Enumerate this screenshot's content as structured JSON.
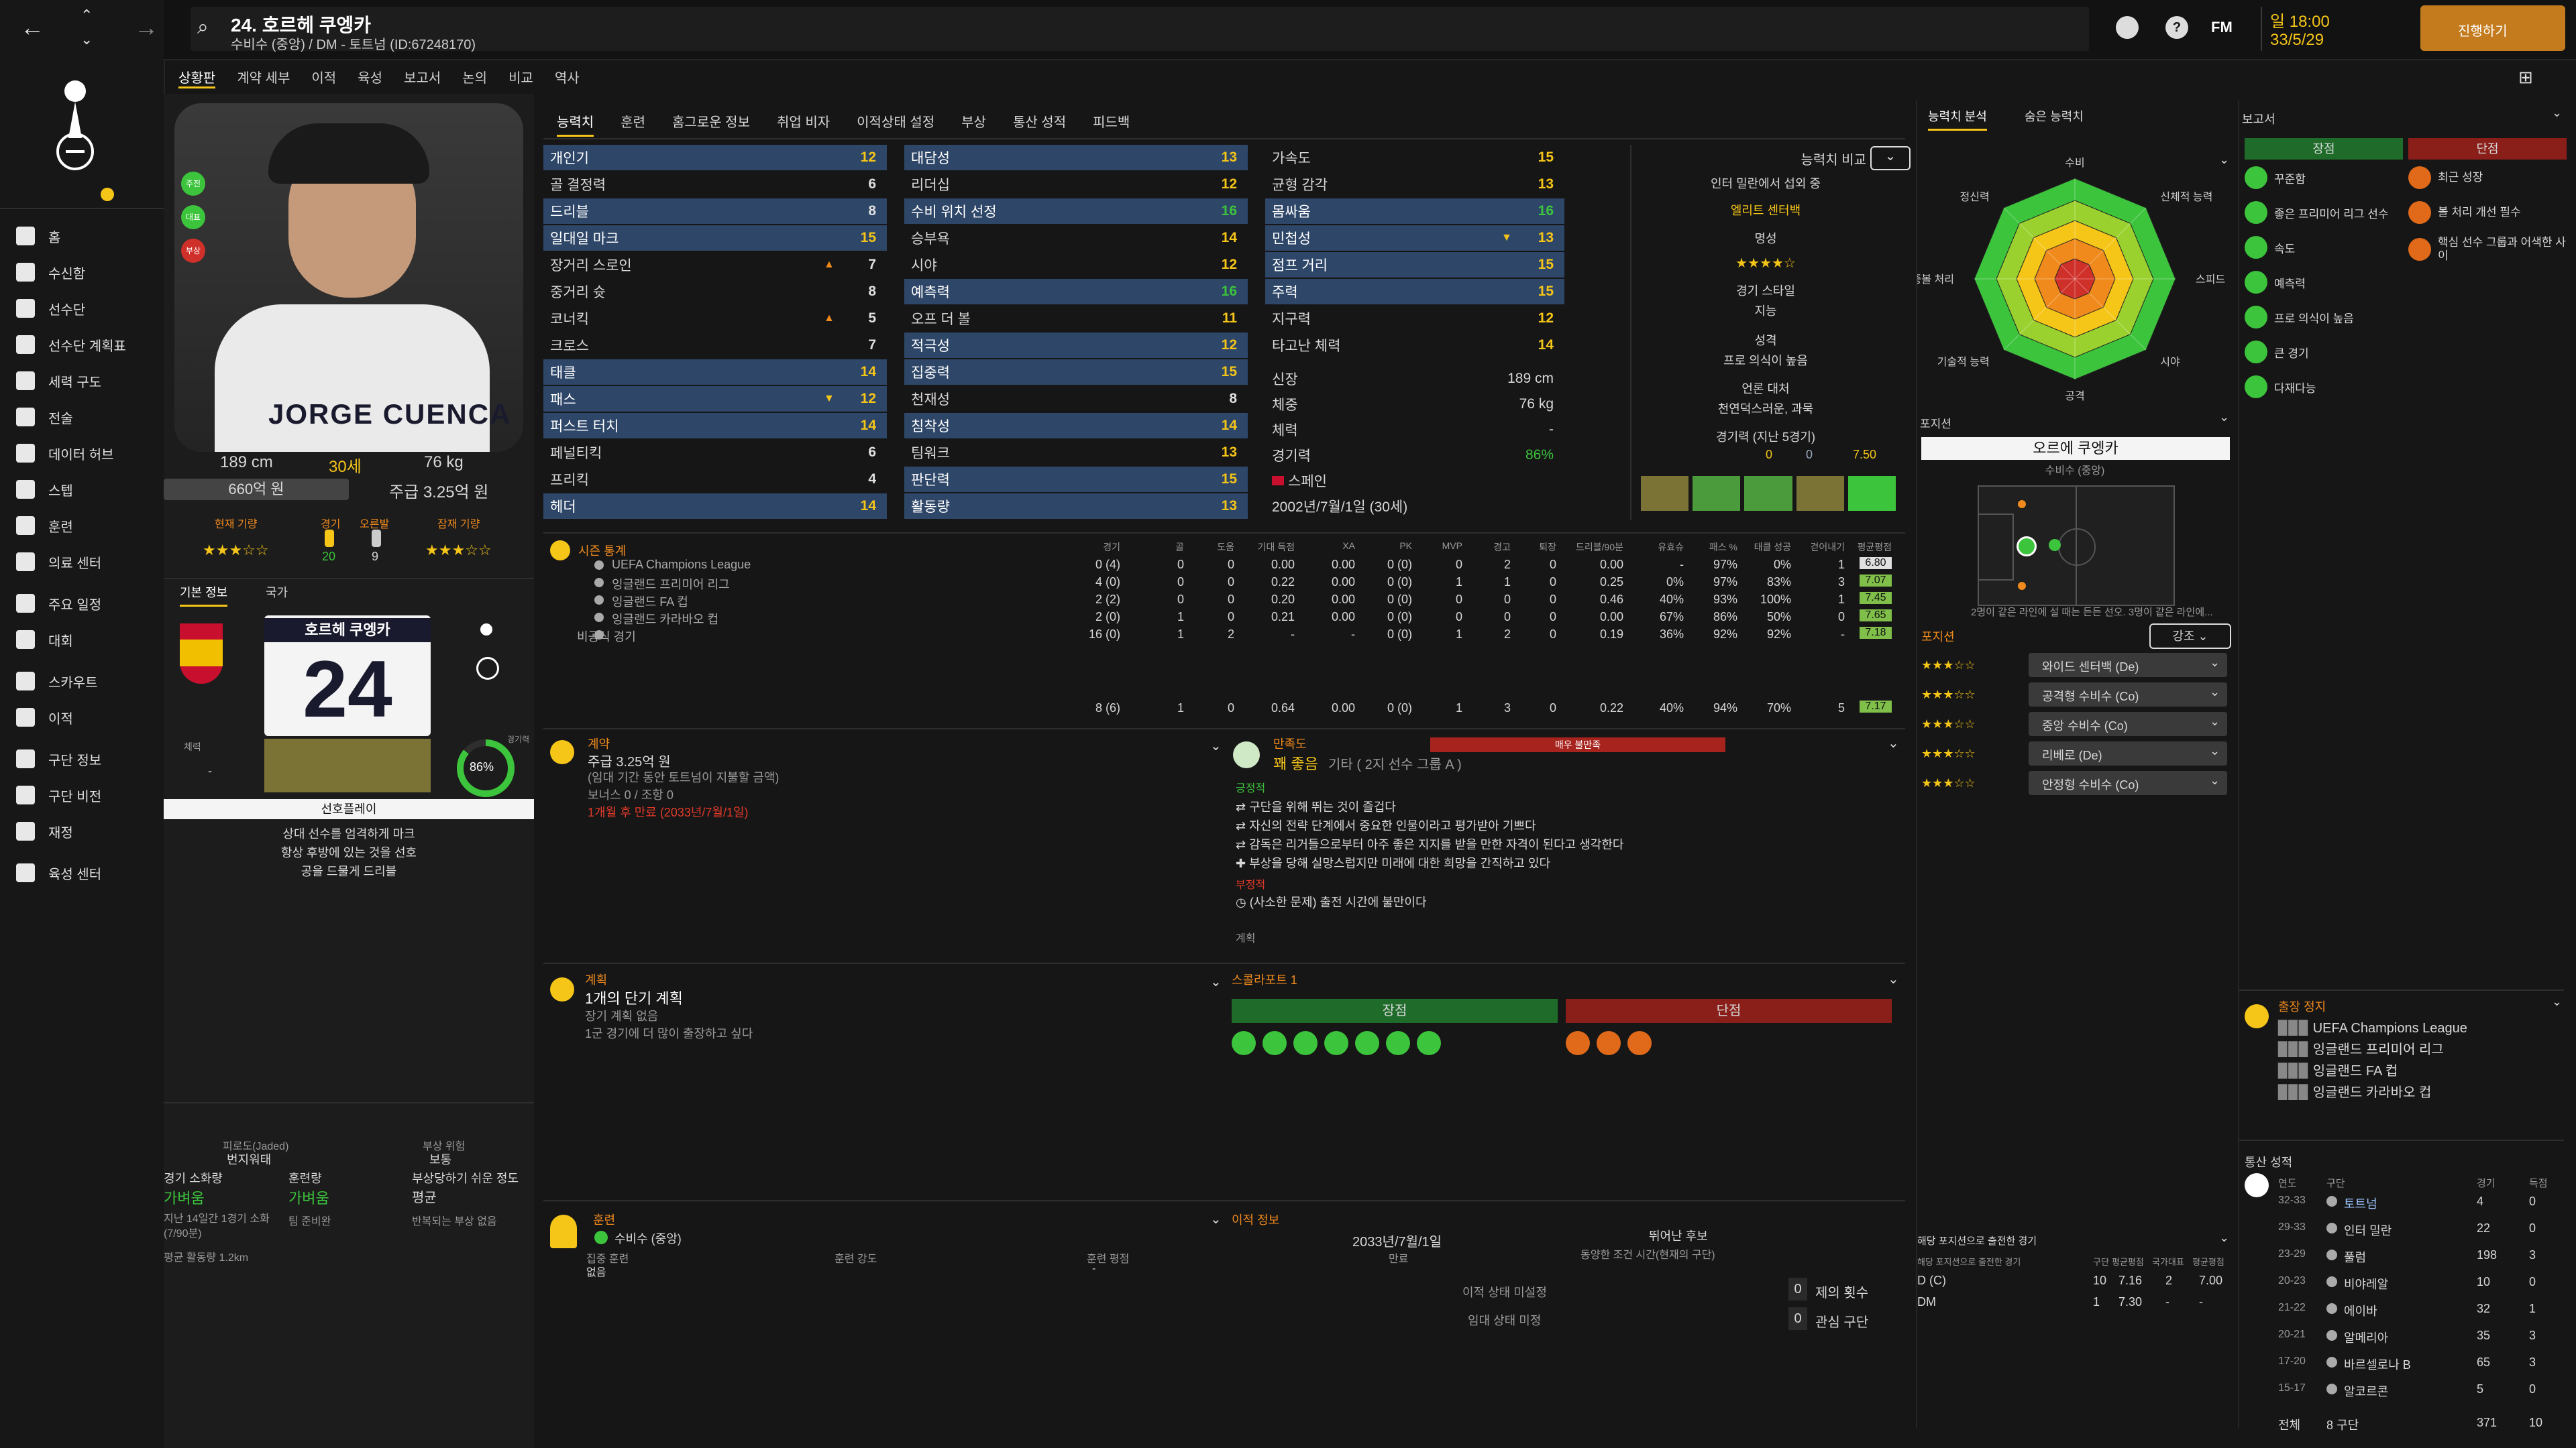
{
  "player": {
    "title": "24. 호르헤 쿠엥카",
    "subtitle": "수비수 (중앙) / DM - 토트넘 (ID:67248170)",
    "shirt_name": "JORGE CUENCA",
    "shirt_name_kr": "호르헤 쿠엥카",
    "number": "24",
    "height": "189 cm",
    "age": "30세",
    "weight": "76 kg",
    "value": "660억 원",
    "wage": "주급 3.25억 원",
    "current_ability_label": "현재 기량",
    "potential_label": "잠재 기량",
    "apps_label": "경기",
    "apps_value": "20",
    "recent_label": "오른발",
    "recent_value": "9",
    "basic_tab": "기본 정보",
    "nation_tab": "국가",
    "fitness_pct": "86%",
    "fitness_label": "경기력",
    "preferred_label": "선호플레이",
    "traits": [
      "상대 선수를 엄격하게 마크",
      "항상 후방에 있는 것을 선호",
      "공을 드물게 드리블"
    ],
    "pos_label": "체력",
    "pos_dash": "-",
    "badge1": "주전",
    "badge2": "대표",
    "badge3": "부상"
  },
  "datebox": {
    "day": "일 18:00",
    "date": "33/5/29",
    "continue": "진행하기"
  },
  "top_icons": [
    "FM"
  ],
  "menu": [
    "상황판",
    "계약 세부",
    "이적",
    "육성",
    "보고서",
    "논의",
    "비교",
    "역사"
  ],
  "sidebar": [
    {
      "label": "홈"
    },
    {
      "label": "수신함"
    },
    {
      "label": "선수단"
    },
    {
      "label": "선수단 계획표"
    },
    {
      "label": "세력 구도"
    },
    {
      "label": "전술"
    },
    {
      "label": "데이터 허브"
    },
    {
      "label": "스텝"
    },
    {
      "label": "훈련"
    },
    {
      "label": "의료 센터"
    },
    {
      "label": "주요 일정"
    },
    {
      "label": "대회"
    },
    {
      "label": "스카우트"
    },
    {
      "label": "이적"
    },
    {
      "label": "구단 정보"
    },
    {
      "label": "구단 비전"
    },
    {
      "label": "재정"
    },
    {
      "label": "육성 센터"
    }
  ],
  "tabs": [
    "능력치",
    "훈련",
    "홈그로운 정보",
    "취업 비자",
    "이적상태 설정",
    "부상",
    "통산 성적",
    "피드백"
  ],
  "attributes": {
    "technical": [
      {
        "name": "개인기",
        "value": "12",
        "hl": true
      },
      {
        "name": "골 결정력",
        "value": "6"
      },
      {
        "name": "드리블",
        "value": "8",
        "hl": true
      },
      {
        "name": "일대일 마크",
        "value": "15",
        "hl": true
      },
      {
        "name": "장거리 스로인",
        "value": "7",
        "up": true
      },
      {
        "name": "중거리 슛",
        "value": "8"
      },
      {
        "name": "코너킥",
        "value": "5",
        "up": true
      },
      {
        "name": "크로스",
        "value": "7"
      },
      {
        "name": "태클",
        "value": "14",
        "hl": true
      },
      {
        "name": "패스",
        "value": "12",
        "hl": true,
        "down": true
      },
      {
        "name": "퍼스트 터치",
        "value": "14",
        "hl": true
      },
      {
        "name": "페널티킥",
        "value": "6"
      },
      {
        "name": "프리킥",
        "value": "4"
      },
      {
        "name": "헤더",
        "value": "14",
        "hl": true
      }
    ],
    "mental": [
      {
        "name": "대담성",
        "value": "13",
        "hl": true
      },
      {
        "name": "리더십",
        "value": "12"
      },
      {
        "name": "수비 위치 선정",
        "value": "16",
        "hl": true
      },
      {
        "name": "승부욕",
        "value": "14"
      },
      {
        "name": "시야",
        "value": "12"
      },
      {
        "name": "예측력",
        "value": "16",
        "hl": true
      },
      {
        "name": "오프 더 볼",
        "value": "11"
      },
      {
        "name": "적극성",
        "value": "12",
        "hl": true
      },
      {
        "name": "집중력",
        "value": "15",
        "hl": true
      },
      {
        "name": "천재성",
        "value": "8"
      },
      {
        "name": "침착성",
        "value": "14",
        "hl": true
      },
      {
        "name": "팀워크",
        "value": "13"
      },
      {
        "name": "판단력",
        "value": "15",
        "hl": true
      },
      {
        "name": "활동량",
        "value": "13",
        "hl": true
      }
    ],
    "physical": [
      {
        "name": "가속도",
        "value": "15"
      },
      {
        "name": "균형 감각",
        "value": "13"
      },
      {
        "name": "몸싸움",
        "value": "16",
        "hl": true
      },
      {
        "name": "민첩성",
        "value": "13",
        "hl": true,
        "down": true
      },
      {
        "name": "점프 거리",
        "value": "15",
        "hl": true
      },
      {
        "name": "주력",
        "value": "15",
        "hl": true
      },
      {
        "name": "지구력",
        "value": "12"
      },
      {
        "name": "타고난 체력",
        "value": "14"
      }
    ],
    "info": [
      {
        "label": "신장",
        "value": "189 cm"
      },
      {
        "label": "체중",
        "value": "76 kg"
      },
      {
        "label": "체력",
        "value": "-"
      },
      {
        "label": "경기력",
        "value": "86%"
      }
    ],
    "nation": "스페인",
    "birth": "2002년/7월/1일 (30세)"
  },
  "compare": {
    "title": "능력치 비교",
    "role_desc": "인터 밀란에서 섭외 중",
    "role": "엘리트 센터백",
    "fame_label": "명성",
    "style_label": "경기 스타일",
    "style_value": "지능",
    "personality_label": "성격",
    "personality_value": "프로 의식이 높음",
    "media_label": "언론 대처",
    "media_value": "천연덕스러운, 과묵",
    "form_label": "경기력 (지난 5경기)",
    "form_goals": "0",
    "form_assists": "0",
    "form_rating": "7.50"
  },
  "season": {
    "title": "시즌 통계",
    "columns": [
      "경기",
      "골",
      "도움",
      "기대 득점",
      "XA",
      "PK",
      "MVP",
      "경고",
      "퇴장",
      "드리블/90분",
      "유효슈",
      "패스 %",
      "태클 성공",
      "걷어내기",
      "평균평점"
    ],
    "rows": [
      {
        "comp": "UEFA Champions League",
        "vals": [
          "0 (4)",
          "0",
          "0",
          "0.00",
          "0.00",
          "0 (0)",
          "0",
          "2",
          "0",
          "0.00",
          "-",
          "97%",
          "0%",
          "1"
        ],
        "rating": "6.80"
      },
      {
        "comp": "잉글랜드 프리미어 리그",
        "vals": [
          "4 (0)",
          "0",
          "0",
          "0.22",
          "0.00",
          "0 (0)",
          "1",
          "1",
          "0",
          "0.25",
          "0%",
          "97%",
          "83%",
          "3"
        ],
        "rating": "7.07"
      },
      {
        "comp": "잉글랜드 FA 컵",
        "vals": [
          "2 (2)",
          "0",
          "0",
          "0.20",
          "0.00",
          "0 (0)",
          "0",
          "0",
          "0",
          "0.46",
          "40%",
          "93%",
          "100%",
          "1"
        ],
        "rating": "7.45"
      },
      {
        "comp": "잉글랜드 카라바오 컵",
        "vals": [
          "2 (0)",
          "1",
          "0",
          "0.21",
          "0.00",
          "0 (0)",
          "0",
          "0",
          "0",
          "0.00",
          "67%",
          "86%",
          "50%",
          "0"
        ],
        "rating": "7.65"
      },
      {
        "comp": "비공식 경기",
        "vals": [
          "16 (0)",
          "1",
          "2",
          "-",
          "-",
          "0 (0)",
          "1",
          "2",
          "0",
          "0.19",
          "36%",
          "92%",
          "92%",
          "-"
        ],
        "rating": "7.18"
      }
    ],
    "total": {
      "vals": [
        "8 (6)",
        "1",
        "0",
        "0.64",
        "0.00",
        "0 (0)",
        "1",
        "3",
        "0",
        "0.22",
        "40%",
        "94%",
        "70%",
        "5"
      ],
      "rating": "7.17"
    }
  },
  "contract": {
    "title": "계약",
    "wage": "주급 3.25억 원",
    "note": "(임대 기간 동안 토트넘이 지불할 금액)",
    "bonus": "보너스 0 / 조항 0",
    "expiry": "1개월 후 만료 (2033년/7월/1일)"
  },
  "happiness": {
    "title": "만족도",
    "level": "꽤 좋음",
    "group": "기타 ( 2지 선수 그룹 A )",
    "bar_label": "매우 불만족",
    "positive_label": "긍정적",
    "positive": [
      "구단을 위해 뛰는 것이 즐겁다",
      "자신의 전략 단계에서 중요한 인물이라고 평가받아 기쁘다",
      "감독은 리거들으로부터 아주 좋은 지지를 받을 만한 자격이 된다고 생각한다",
      "부상을 당해 실망스럽지만 미래에 대한 희망을 간직하고 있다"
    ],
    "negative_label": "부정적",
    "negative": [
      "(사소한 문제) 출전 시간에 불만이다"
    ],
    "plan_label": "계획"
  },
  "plan": {
    "title": "계획",
    "heading": "1개의 단기 계획",
    "long": "장기 계획 없음",
    "short": "1군 경기에 더 많이 출장하고 싶다"
  },
  "scout": {
    "title": "스콜라포트 1",
    "strengths_label": "장점",
    "weaknesses_label": "단점"
  },
  "training": {
    "title": "훈련",
    "pos": "수비수 (중앙)",
    "focus_label": "집중 훈련",
    "focus_value": "없음",
    "intensity_label": "훈련 강도",
    "rating_label": "훈련 평점",
    "rating_value": "-"
  },
  "transfer": {
    "title": "이적 정보",
    "date": "2033년/7월/1일",
    "date_label": "만료",
    "status_label": "뛰어난 후보",
    "status_note": "동양한 조건 시간(현재의 구단)",
    "list_label": "이적 상태 미설정",
    "loan_label": "임대 상태 미정",
    "offers_label": "제의 횟수",
    "offers_value": "0",
    "interest_label": "관심 구단",
    "interest_value": "0"
  },
  "fitness": {
    "label_a": "피로도(Jaded)",
    "value_a": "번지워태",
    "label_b": "부상 위험",
    "value_b": "보통",
    "cond_label": "경기 소화량",
    "cond_value": "가벼움",
    "train_label": "훈련량",
    "train_value": "가벼움",
    "injury_label": "부상당하기 쉬운 정도",
    "injury_value": "평균",
    "last_match": "지난 14일간 1경기 소화(7/90분)",
    "rest": "팀 준비완",
    "injury_note": "반복되는 부상 없음",
    "distance": "평균 활동량 1.2km"
  },
  "radar": {
    "tab_a": "능력치 분석",
    "tab_b": "숨은 능력치",
    "labels": [
      "수비",
      "신체적 능력",
      "스피드",
      "시야",
      "공격",
      "기술적 능력",
      "공중볼 처리",
      "정신력"
    ]
  },
  "position": {
    "title": "포지션",
    "name": "오르에 쿠엥카",
    "sub": "수비수 (중앙)",
    "note": "2명이 같은 라인에 설 때는 든든 선오. 3명이 같은 라인에...",
    "role_label": "포지션",
    "role_btn": "강조",
    "roles": [
      "와이드 센터백 (De)",
      "공격형 수비수 (Co)",
      "중앙 수비수 (Co)",
      "리베로 (De)",
      "안정형 수비수 (Co)"
    ],
    "roles_pos_title": "해당 포지션으로 출전한 경기",
    "roles_cols": [
      "구단",
      "평균평점",
      "국가대표",
      "평균평점"
    ],
    "pos_rows": [
      {
        "pos": "D (C)",
        "a": "10",
        "b": "7.16",
        "c": "2",
        "d": "7.00"
      },
      {
        "pos": "DM",
        "a": "1",
        "b": "7.30",
        "c": "-",
        "d": "-"
      }
    ]
  },
  "report": {
    "title": "보고서",
    "strengths_label": "장점",
    "weaknesses_label": "단점",
    "strengths": [
      "꾸준함",
      "좋은 프리미어 리그 선수",
      "속도",
      "예측력",
      "프로 의식이 높음",
      "큰 경기",
      "다재다능"
    ],
    "weaknesses": [
      "최근 성장",
      "볼 처리 개선 필수",
      "핵심 선수 그룹과 어색한 사이"
    ]
  },
  "suspension": {
    "title": "출장 정지",
    "items": [
      "UEFA Champions League",
      "잉글랜드 프리미어 리그",
      "잉글랜드 FA 컵",
      "잉글랜드 카라바오 컵"
    ]
  },
  "career": {
    "title": "통산 성적",
    "cols": [
      "연도",
      "구단",
      "경기",
      "득점"
    ],
    "rows": [
      {
        "year": "32-33",
        "club": "토트넘",
        "apps": "4",
        "goals": "0"
      },
      {
        "year": "29-33",
        "club": "인터 밀란",
        "apps": "22",
        "goals": "0"
      },
      {
        "year": "23-29",
        "club": "풀럼",
        "apps": "198",
        "goals": "3"
      },
      {
        "year": "20-23",
        "club": "비야레알",
        "apps": "10",
        "goals": "0"
      },
      {
        "year": "21-22",
        "club": "에이바",
        "apps": "32",
        "goals": "1"
      },
      {
        "year": "20-21",
        "club": "알메리아",
        "apps": "35",
        "goals": "3"
      },
      {
        "year": "17-20",
        "club": "바르셀로나 B",
        "apps": "65",
        "goals": "3"
      },
      {
        "year": "15-17",
        "club": "알코르콘",
        "apps": "5",
        "goals": "0"
      }
    ],
    "total_label": "전체",
    "total_clubs": "8 구단",
    "total_apps": "371",
    "total_goals": "10"
  },
  "colors": {
    "accent": "#f5c518",
    "green": "#3cc43c",
    "red": "#a7231e",
    "highlight": "#2e4668",
    "button": "#c47b1d"
  }
}
